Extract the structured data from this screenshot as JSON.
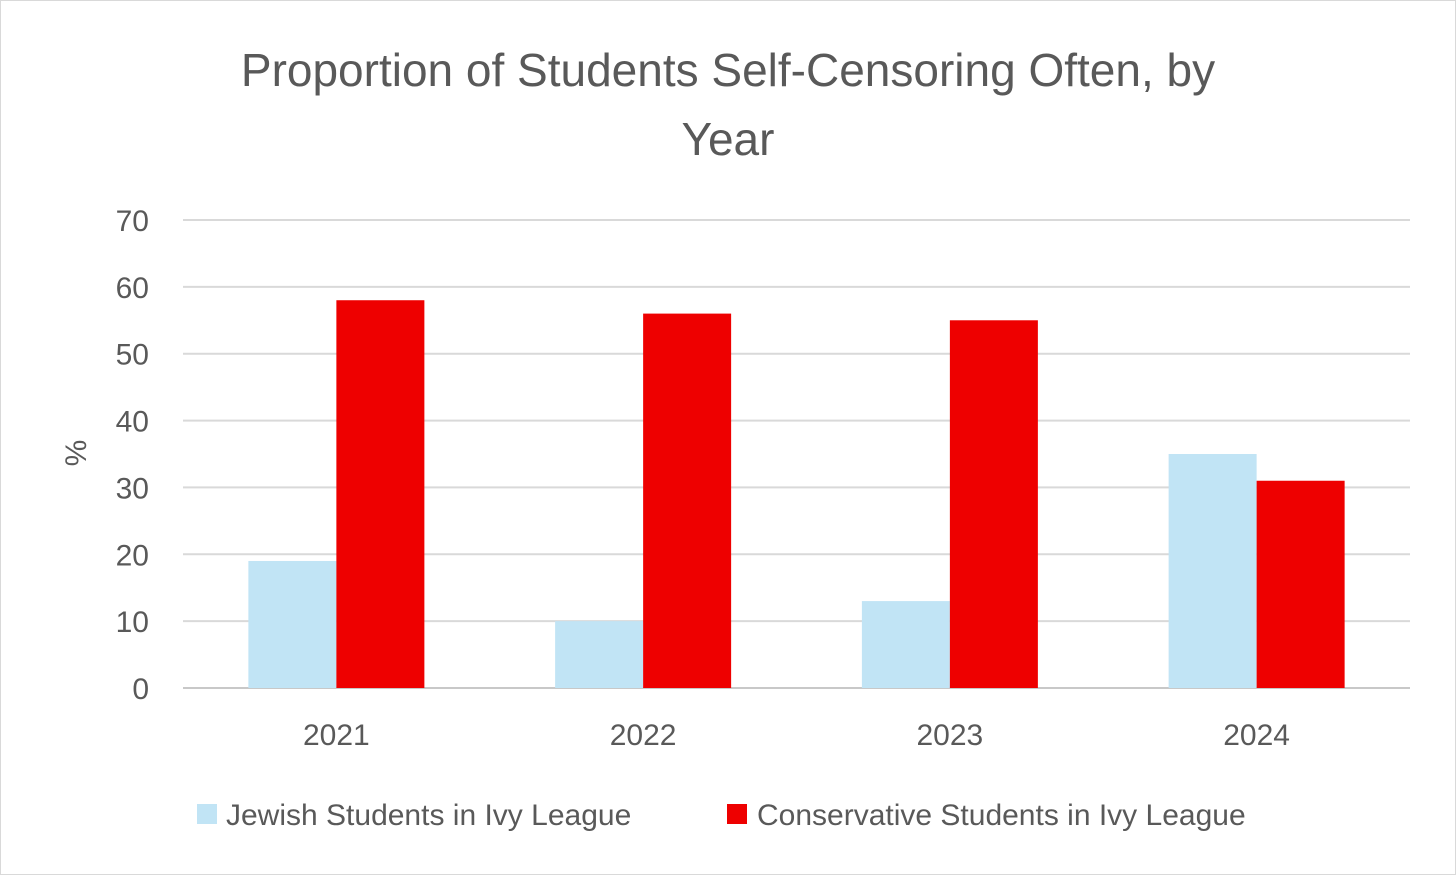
{
  "chart_data": {
    "type": "bar",
    "title": "Proportion of Students Self-Censoring Often, by Year",
    "title_lines": [
      "Proportion of Students Self-Censoring Often, by",
      "Year"
    ],
    "xlabel": "",
    "ylabel": "%",
    "categories": [
      "2021",
      "2022",
      "2023",
      "2024"
    ],
    "ylim": [
      0,
      70
    ],
    "yticks": [
      0,
      10,
      20,
      30,
      40,
      50,
      60,
      70
    ],
    "grid": true,
    "legend_position": "bottom",
    "series": [
      {
        "name": "Jewish Students in Ivy League",
        "color": "#c1e4f5",
        "values": [
          19,
          10,
          13,
          35
        ]
      },
      {
        "name": "Conservative Students in Ivy League",
        "color": "#ee0000",
        "values": [
          58,
          56,
          55,
          31
        ]
      }
    ]
  }
}
